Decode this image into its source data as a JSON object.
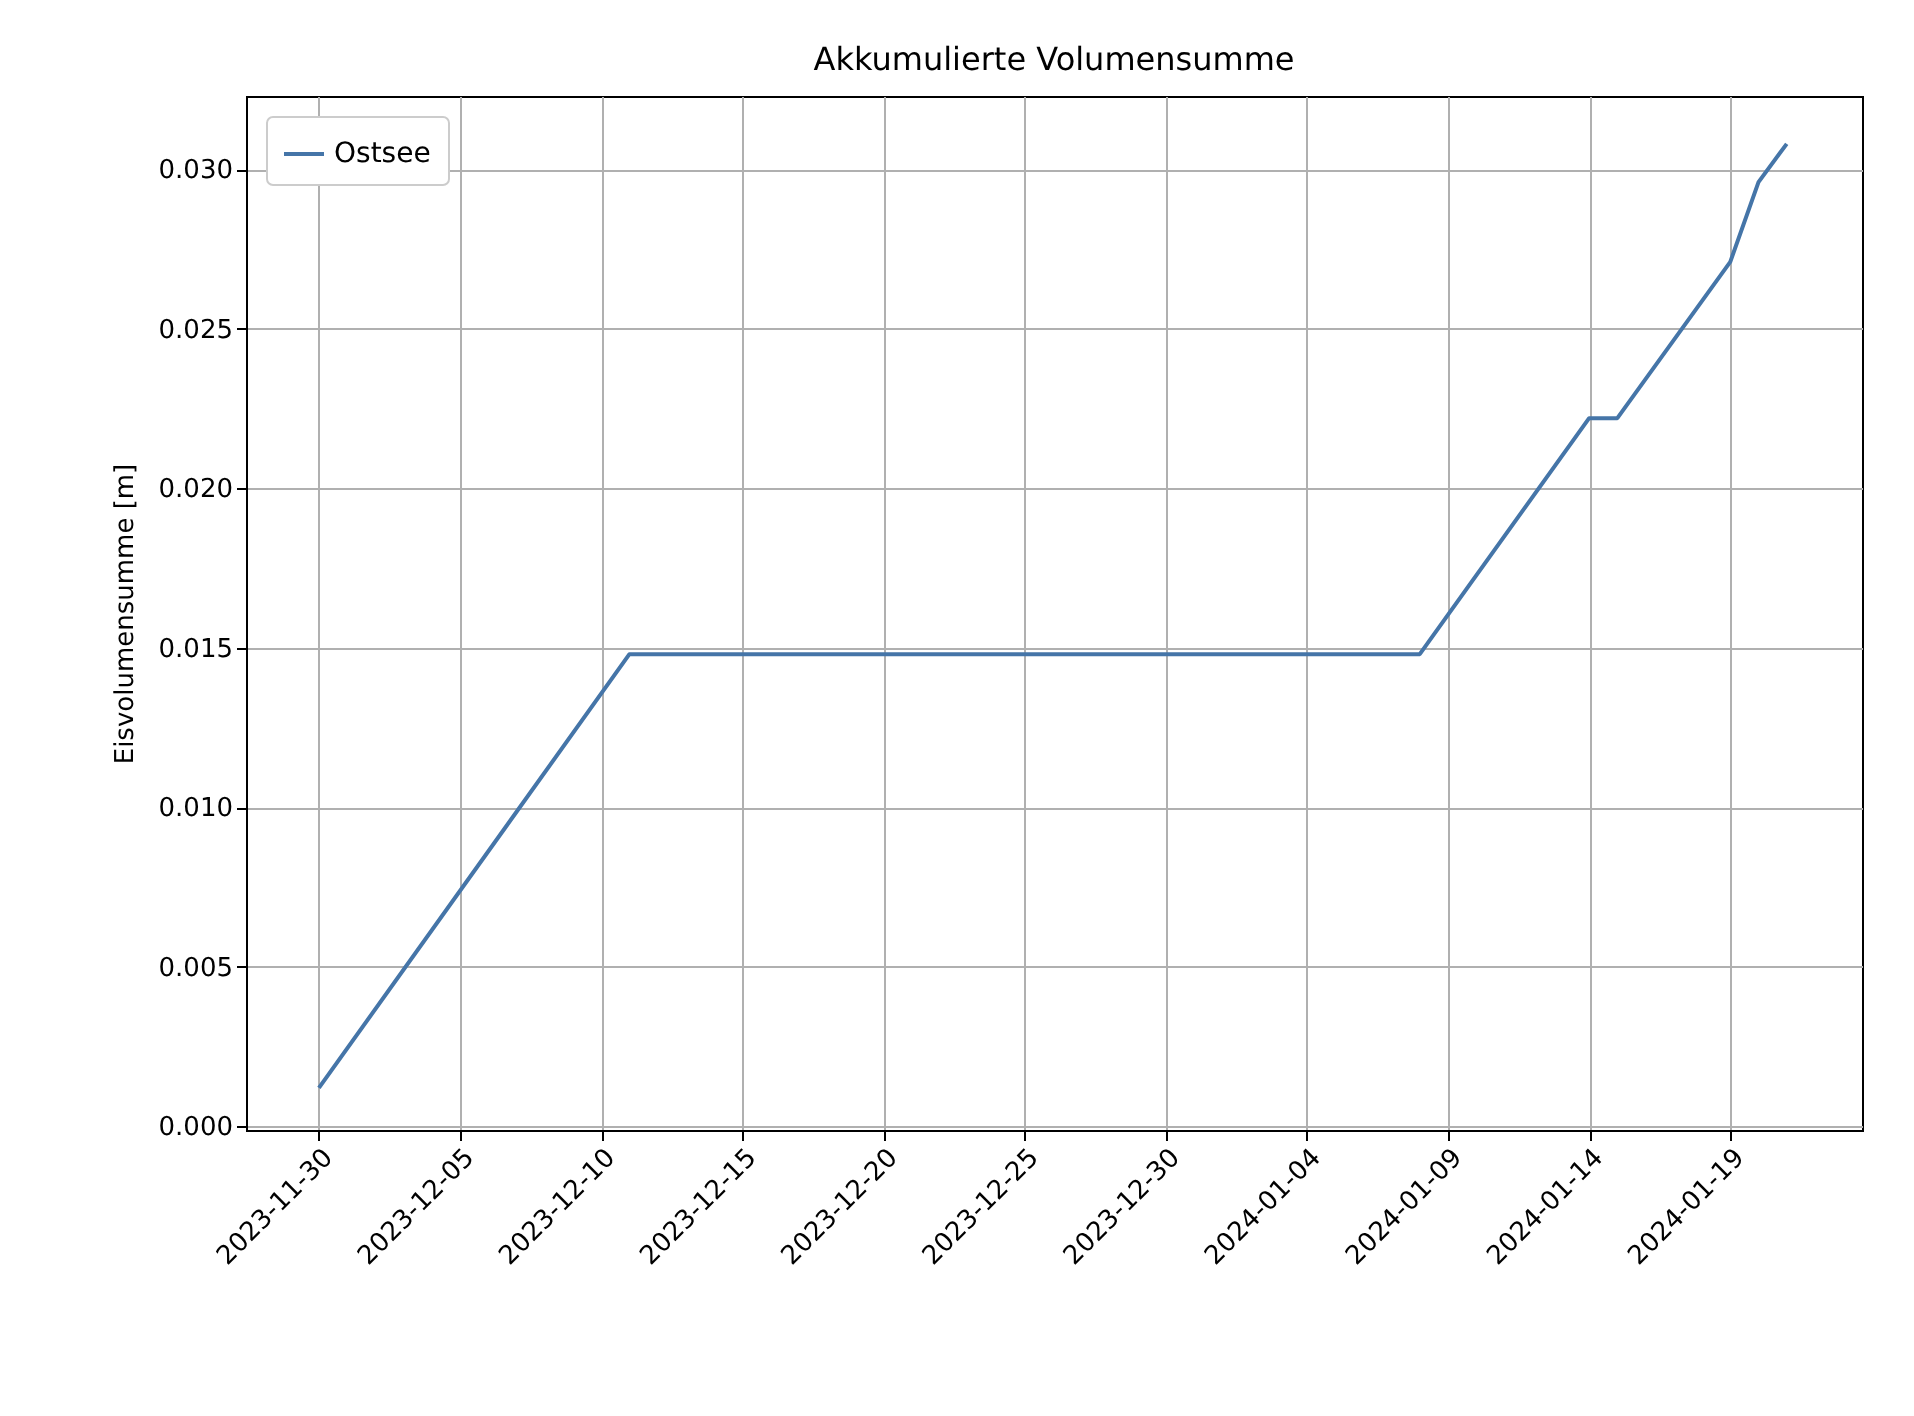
{
  "chart_data": {
    "type": "line",
    "title": "Akkumulierte Volumensumme",
    "ylabel": "Eisvolumensumme [m]",
    "x": [
      "2023-11-30",
      "2023-12-11",
      "2024-01-08",
      "2024-01-14",
      "2024-01-15",
      "2024-01-19",
      "2024-01-20",
      "2024-01-21"
    ],
    "series": [
      {
        "name": "Ostsee",
        "color": "#4575a8",
        "values": [
          0.0012,
          0.0148,
          0.0148,
          0.0222,
          0.0222,
          0.0271,
          0.0296,
          0.0308
        ]
      }
    ],
    "xlim": [
      "2023-11-27T10:00",
      "2024-01-23T16:00"
    ],
    "xticks": [
      "2023-11-30",
      "2023-12-05",
      "2023-12-10",
      "2023-12-15",
      "2023-12-20",
      "2023-12-25",
      "2023-12-30",
      "2024-01-04",
      "2024-01-09",
      "2024-01-14",
      "2024-01-19"
    ],
    "ylim": [
      -0.00012,
      0.0323
    ],
    "yticks": [
      {
        "value": 0,
        "label": "0.000"
      },
      {
        "value": 0.005,
        "label": "0.005"
      },
      {
        "value": 0.01,
        "label": "0.010"
      },
      {
        "value": 0.015,
        "label": "0.015"
      },
      {
        "value": 0.02,
        "label": "0.020"
      },
      {
        "value": 0.025,
        "label": "0.025"
      },
      {
        "value": 0.03,
        "label": "0.030"
      }
    ],
    "grid": true,
    "legend": "top left",
    "marker": "none",
    "line_style": "solid"
  }
}
